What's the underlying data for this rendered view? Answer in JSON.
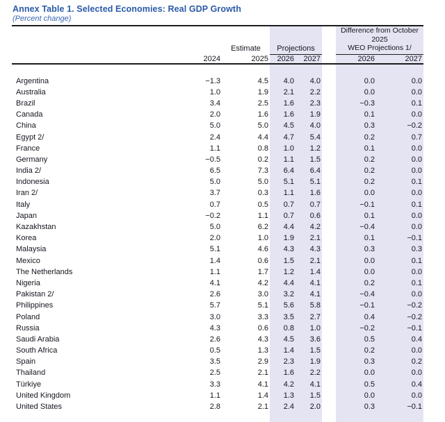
{
  "title": "Annex Table 1. Selected Economies: Real GDP Growth",
  "subtitle": "(Percent change)",
  "colors": {
    "title_blue": "#2b5aa8",
    "subtitle_blue": "#3a66b5",
    "band_lavender": "#e4e4f2",
    "rule_black": "#1c1c1c",
    "text": "#15151f"
  },
  "table": {
    "group_headers": {
      "estimate": "Estimate",
      "projections": "Projections",
      "difference_line1": "Difference from October 2025",
      "difference_line2": "WEO Projections 1/"
    },
    "year_headers": [
      "2024",
      "2025",
      "2026",
      "2027",
      "2026",
      "2027"
    ],
    "rows": [
      {
        "country": "Argentina",
        "values": [
          "−1.3",
          "4.5",
          "4.0",
          "4.0",
          "0.0",
          "0.0"
        ]
      },
      {
        "country": "Australia",
        "values": [
          "1.0",
          "1.9",
          "2.1",
          "2.2",
          "0.0",
          "0.0"
        ]
      },
      {
        "country": "Brazil",
        "values": [
          "3.4",
          "2.5",
          "1.6",
          "2.3",
          "−0.3",
          "0.1"
        ]
      },
      {
        "country": "Canada",
        "values": [
          "2.0",
          "1.6",
          "1.6",
          "1.9",
          "0.1",
          "0.0"
        ]
      },
      {
        "country": "China",
        "values": [
          "5.0",
          "5.0",
          "4.5",
          "4.0",
          "0.3",
          "−0.2"
        ]
      },
      {
        "country": "Egypt 2/",
        "values": [
          "2.4",
          "4.4",
          "4.7",
          "5.4",
          "0.2",
          "0.7"
        ]
      },
      {
        "country": "France",
        "values": [
          "1.1",
          "0.8",
          "1.0",
          "1.2",
          "0.1",
          "0.0"
        ]
      },
      {
        "country": "Germany",
        "values": [
          "−0.5",
          "0.2",
          "1.1",
          "1.5",
          "0.2",
          "0.0"
        ]
      },
      {
        "country": "India 2/",
        "values": [
          "6.5",
          "7.3",
          "6.4",
          "6.4",
          "0.2",
          "0.0"
        ]
      },
      {
        "country": "Indonesia",
        "values": [
          "5.0",
          "5.0",
          "5.1",
          "5.1",
          "0.2",
          "0.1"
        ]
      },
      {
        "country": "Iran 2/",
        "values": [
          "3.7",
          "0.3",
          "1.1",
          "1.6",
          "0.0",
          "0.0"
        ]
      },
      {
        "country": "Italy",
        "values": [
          "0.7",
          "0.5",
          "0.7",
          "0.7",
          "−0.1",
          "0.1"
        ]
      },
      {
        "country": "Japan",
        "values": [
          "−0.2",
          "1.1",
          "0.7",
          "0.6",
          "0.1",
          "0.0"
        ]
      },
      {
        "country": "Kazakhstan",
        "values": [
          "5.0",
          "6.2",
          "4.4",
          "4.2",
          "−0.4",
          "0.0"
        ]
      },
      {
        "country": "Korea",
        "values": [
          "2.0",
          "1.0",
          "1.9",
          "2.1",
          "0.1",
          "−0.1"
        ]
      },
      {
        "country": "Malaysia",
        "values": [
          "5.1",
          "4.6",
          "4.3",
          "4.3",
          "0.3",
          "0.3"
        ]
      },
      {
        "country": "Mexico",
        "values": [
          "1.4",
          "0.6",
          "1.5",
          "2.1",
          "0.0",
          "0.1"
        ]
      },
      {
        "country": "The Netherlands",
        "values": [
          "1.1",
          "1.7",
          "1.2",
          "1.4",
          "0.0",
          "0.0"
        ]
      },
      {
        "country": "Nigeria",
        "values": [
          "4.1",
          "4.2",
          "4.4",
          "4.1",
          "0.2",
          "0.1"
        ]
      },
      {
        "country": "Pakistan 2/",
        "values": [
          "2.6",
          "3.0",
          "3.2",
          "4.1",
          "−0.4",
          "0.0"
        ]
      },
      {
        "country": "Philippines",
        "values": [
          "5.7",
          "5.1",
          "5.6",
          "5.8",
          "−0.1",
          "−0.2"
        ]
      },
      {
        "country": "Poland",
        "values": [
          "3.0",
          "3.3",
          "3.5",
          "2.7",
          "0.4",
          "−0.2"
        ]
      },
      {
        "country": "Russia",
        "values": [
          "4.3",
          "0.6",
          "0.8",
          "1.0",
          "−0.2",
          "−0.1"
        ]
      },
      {
        "country": "Saudi Arabia",
        "values": [
          "2.6",
          "4.3",
          "4.5",
          "3.6",
          "0.5",
          "0.4"
        ]
      },
      {
        "country": "South Africa",
        "values": [
          "0.5",
          "1.3",
          "1.4",
          "1.5",
          "0.2",
          "0.0"
        ]
      },
      {
        "country": "Spain",
        "values": [
          "3.5",
          "2.9",
          "2.3",
          "1.9",
          "0.3",
          "0.2"
        ]
      },
      {
        "country": "Thailand",
        "values": [
          "2.5",
          "2.1",
          "1.6",
          "2.2",
          "0.0",
          "0.0"
        ]
      },
      {
        "country": "Türkiye",
        "values": [
          "3.3",
          "4.1",
          "4.2",
          "4.1",
          "0.5",
          "0.4"
        ]
      },
      {
        "country": "United Kingdom",
        "values": [
          "1.1",
          "1.4",
          "1.3",
          "1.5",
          "0.0",
          "0.0"
        ]
      },
      {
        "country": "United States",
        "values": [
          "2.8",
          "2.1",
          "2.4",
          "2.0",
          "0.3",
          "−0.1"
        ]
      }
    ]
  }
}
